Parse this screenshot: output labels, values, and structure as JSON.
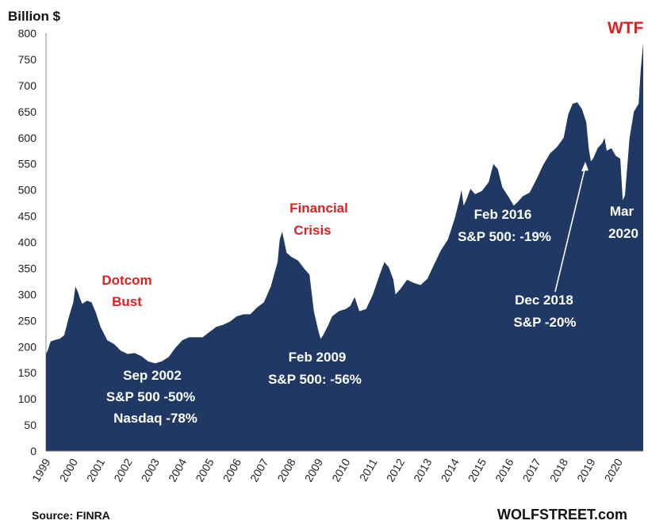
{
  "chart_data": {
    "type": "area",
    "ylabel": "Billion $",
    "ylim": [
      0,
      800
    ],
    "yticks": [
      0,
      50,
      100,
      150,
      200,
      250,
      300,
      350,
      400,
      450,
      500,
      550,
      600,
      650,
      700,
      750,
      800
    ],
    "xlim": [
      1999.0,
      2020.92
    ],
    "xticks": [
      "1999",
      "2000",
      "2001",
      "2002",
      "2003",
      "2004",
      "2005",
      "2006",
      "2007",
      "2008",
      "2009",
      "2010",
      "2011",
      "2012",
      "2013",
      "2014",
      "2015",
      "2016",
      "2017",
      "2018",
      "2019",
      "2020"
    ],
    "grid": false,
    "color": "#1f3864",
    "points": [
      [
        1999.0,
        185
      ],
      [
        1999.08,
        195
      ],
      [
        1999.17,
        210
      ],
      [
        1999.33,
        213
      ],
      [
        1999.5,
        215
      ],
      [
        1999.67,
        222
      ],
      [
        1999.83,
        255
      ],
      [
        2000.0,
        285
      ],
      [
        2000.08,
        315
      ],
      [
        2000.17,
        305
      ],
      [
        2000.25,
        292
      ],
      [
        2000.33,
        282
      ],
      [
        2000.5,
        288
      ],
      [
        2000.67,
        285
      ],
      [
        2000.83,
        265
      ],
      [
        2001.0,
        238
      ],
      [
        2001.25,
        212
      ],
      [
        2001.5,
        205
      ],
      [
        2001.75,
        192
      ],
      [
        2002.0,
        186
      ],
      [
        2002.25,
        188
      ],
      [
        2002.5,
        182
      ],
      [
        2002.75,
        172
      ],
      [
        2003.0,
        168
      ],
      [
        2003.25,
        172
      ],
      [
        2003.5,
        180
      ],
      [
        2003.75,
        198
      ],
      [
        2004.0,
        212
      ],
      [
        2004.25,
        218
      ],
      [
        2004.5,
        218
      ],
      [
        2004.75,
        218
      ],
      [
        2005.0,
        228
      ],
      [
        2005.25,
        238
      ],
      [
        2005.5,
        242
      ],
      [
        2005.75,
        248
      ],
      [
        2006.0,
        258
      ],
      [
        2006.25,
        262
      ],
      [
        2006.5,
        262
      ],
      [
        2006.75,
        275
      ],
      [
        2007.0,
        285
      ],
      [
        2007.25,
        315
      ],
      [
        2007.5,
        362
      ],
      [
        2007.58,
        405
      ],
      [
        2007.67,
        420
      ],
      [
        2007.75,
        400
      ],
      [
        2007.83,
        380
      ],
      [
        2008.0,
        372
      ],
      [
        2008.25,
        365
      ],
      [
        2008.5,
        348
      ],
      [
        2008.67,
        338
      ],
      [
        2008.83,
        268
      ],
      [
        2009.0,
        230
      ],
      [
        2009.08,
        215
      ],
      [
        2009.17,
        222
      ],
      [
        2009.33,
        238
      ],
      [
        2009.5,
        258
      ],
      [
        2009.75,
        268
      ],
      [
        2010.0,
        272
      ],
      [
        2010.17,
        278
      ],
      [
        2010.33,
        295
      ],
      [
        2010.5,
        268
      ],
      [
        2010.75,
        272
      ],
      [
        2011.0,
        300
      ],
      [
        2011.25,
        338
      ],
      [
        2011.42,
        362
      ],
      [
        2011.58,
        352
      ],
      [
        2011.75,
        328
      ],
      [
        2011.83,
        300
      ],
      [
        2012.0,
        310
      ],
      [
        2012.25,
        328
      ],
      [
        2012.5,
        322
      ],
      [
        2012.75,
        318
      ],
      [
        2013.0,
        330
      ],
      [
        2013.25,
        358
      ],
      [
        2013.5,
        385
      ],
      [
        2013.75,
        405
      ],
      [
        2014.0,
        445
      ],
      [
        2014.17,
        480
      ],
      [
        2014.25,
        500
      ],
      [
        2014.33,
        470
      ],
      [
        2014.42,
        480
      ],
      [
        2014.58,
        502
      ],
      [
        2014.75,
        492
      ],
      [
        2015.0,
        498
      ],
      [
        2015.25,
        515
      ],
      [
        2015.42,
        550
      ],
      [
        2015.58,
        540
      ],
      [
        2015.75,
        505
      ],
      [
        2016.0,
        485
      ],
      [
        2016.17,
        470
      ],
      [
        2016.33,
        478
      ],
      [
        2016.5,
        488
      ],
      [
        2016.75,
        495
      ],
      [
        2017.0,
        520
      ],
      [
        2017.25,
        548
      ],
      [
        2017.5,
        570
      ],
      [
        2017.75,
        582
      ],
      [
        2018.0,
        600
      ],
      [
        2018.17,
        645
      ],
      [
        2018.33,
        665
      ],
      [
        2018.5,
        668
      ],
      [
        2018.67,
        655
      ],
      [
        2018.83,
        630
      ],
      [
        2018.92,
        580
      ],
      [
        2019.0,
        555
      ],
      [
        2019.08,
        560
      ],
      [
        2019.25,
        580
      ],
      [
        2019.42,
        590
      ],
      [
        2019.5,
        600
      ],
      [
        2019.58,
        575
      ],
      [
        2019.75,
        580
      ],
      [
        2019.92,
        565
      ],
      [
        2020.08,
        560
      ],
      [
        2020.17,
        480
      ],
      [
        2020.25,
        490
      ],
      [
        2020.42,
        600
      ],
      [
        2020.58,
        650
      ],
      [
        2020.75,
        665
      ],
      [
        2020.83,
        730
      ],
      [
        2020.92,
        782
      ]
    ]
  },
  "annotations": {
    "y_unit": "Billion $",
    "dotcom_line1": "Dotcom",
    "dotcom_line2": "Bust",
    "sep2002_line1": "Sep 2002",
    "sep2002_line2": "S&P 500 -50%",
    "sep2002_line3": "Nasdaq -78%",
    "financial_line1": "Financial",
    "financial_line2": "Crisis",
    "feb2009_line1": "Feb  2009",
    "feb2009_line2": "S&P 500: -56%",
    "feb2016_line1": "Feb 2016",
    "feb2016_line2": "S&P 500: -19%",
    "dec2018_line1": "Dec 2018",
    "dec2018_line2": "S&P -20%",
    "mar2020_line1": "Mar",
    "mar2020_line2": "2020",
    "wtf": "WTF",
    "source": "Source: FINRA",
    "brand": "WOLFSTREET.com"
  }
}
